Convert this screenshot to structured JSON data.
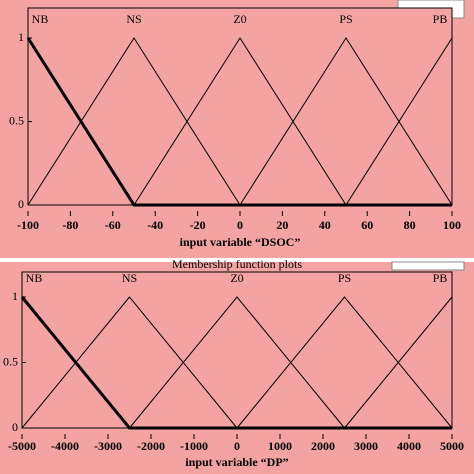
{
  "chart_data": [
    {
      "type": "line",
      "xlabel": "input variable “DSOC”",
      "xlim": [
        -100,
        100
      ],
      "xticks": [
        -100,
        -80,
        -60,
        -40,
        -20,
        0,
        20,
        40,
        60,
        80,
        100
      ],
      "ylim": [
        0,
        1
      ],
      "yticks": [
        0,
        0.5,
        1
      ],
      "color": "#000000",
      "series": [
        {
          "name": "NB",
          "x": [
            -100,
            -50,
            100
          ],
          "values": [
            1,
            0,
            0
          ],
          "linewidth": 3
        },
        {
          "name": "NS",
          "x": [
            -100,
            -50,
            0
          ],
          "values": [
            0,
            1,
            0
          ],
          "linewidth": 1
        },
        {
          "name": "Z0",
          "x": [
            -50,
            0,
            50
          ],
          "values": [
            0,
            1,
            0
          ],
          "linewidth": 1
        },
        {
          "name": "PS",
          "x": [
            0,
            50,
            100
          ],
          "values": [
            0,
            1,
            0
          ],
          "linewidth": 1
        },
        {
          "name": "PB",
          "x": [
            50,
            100
          ],
          "values": [
            0,
            1
          ],
          "linewidth": 1
        }
      ]
    },
    {
      "type": "line",
      "title": "Membership function plots",
      "xlabel": "input variable “DP”",
      "xlim": [
        -5000,
        5000
      ],
      "xticks": [
        -5000,
        -4000,
        -3000,
        -2000,
        -1000,
        0,
        1000,
        2000,
        3000,
        4000,
        5000
      ],
      "ylim": [
        0,
        1
      ],
      "yticks": [
        0,
        0.5,
        1
      ],
      "color": "#000000",
      "series": [
        {
          "name": "NB",
          "x": [
            -5000,
            -2500,
            5000
          ],
          "values": [
            1,
            0,
            0
          ],
          "linewidth": 3
        },
        {
          "name": "NS",
          "x": [
            -5000,
            -2500,
            0
          ],
          "values": [
            0,
            1,
            0
          ],
          "linewidth": 1
        },
        {
          "name": "Z0",
          "x": [
            -2500,
            0,
            2500
          ],
          "values": [
            0,
            1,
            0
          ],
          "linewidth": 1
        },
        {
          "name": "PS",
          "x": [
            0,
            2500,
            5000
          ],
          "values": [
            0,
            1,
            0
          ],
          "linewidth": 1
        },
        {
          "name": "PB",
          "x": [
            2500,
            5000
          ],
          "values": [
            0,
            1
          ],
          "linewidth": 1
        }
      ]
    }
  ]
}
